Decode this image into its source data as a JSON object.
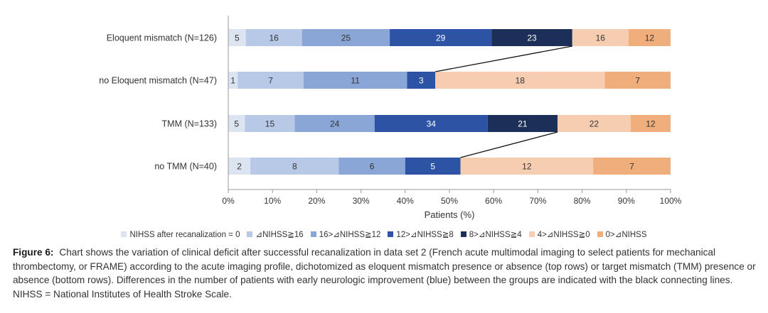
{
  "chart_data": {
    "type": "bar",
    "orientation": "horizontal",
    "stacking": "percent",
    "categories": [
      "Eloquent mismatch (N=126)",
      "no Eloquent mismatch (N=47)",
      "TMM (N=133)",
      "no TMM (N=40)"
    ],
    "totals": [
      126,
      47,
      133,
      40
    ],
    "series": [
      {
        "name": "NIHSS after recanalization = 0",
        "color": "#dde4f1",
        "values": [
          5,
          1,
          5,
          2
        ]
      },
      {
        "name": "⊿NIHSS≧16",
        "color": "#b8c9e8",
        "values": [
          16,
          7,
          15,
          8
        ]
      },
      {
        "name": "16>⊿NIHSS≧12",
        "color": "#8aa6d6",
        "values": [
          25,
          11,
          24,
          6
        ]
      },
      {
        "name": "12>⊿NIHSS≧8",
        "color": "#2c53a4",
        "values": [
          29,
          3,
          34,
          5
        ]
      },
      {
        "name": "8>⊿NIHSS≧4",
        "color": "#1c2f58",
        "values": [
          23,
          0,
          21,
          0
        ]
      },
      {
        "name": "4>⊿NIHSS≧0",
        "color": "#f6cdb1",
        "values": [
          16,
          18,
          22,
          12
        ]
      },
      {
        "name": "0>⊿NIHSS",
        "color": "#f0ae7d",
        "values": [
          12,
          7,
          12,
          7
        ]
      }
    ],
    "connectors": [
      [
        0,
        1
      ],
      [
        2,
        3
      ]
    ],
    "xlabel": "Patients (%)",
    "xticks": [
      "0%",
      "10%",
      "20%",
      "30%",
      "40%",
      "50%",
      "60%",
      "70%",
      "80%",
      "90%",
      "100%"
    ],
    "xlim": [
      0,
      100
    ],
    "grid": false,
    "legend_position": "bottom"
  },
  "caption": {
    "label": "Figure 6:",
    "text": "Chart shows the variation of clinical deficit after successful recanalization in data set 2 (French acute multimodal imaging to select patients for mechanical thrombectomy, or FRAME) according to the acute imaging profile, dichotomized as eloquent mismatch presence or absence (top rows) or target mismatch (TMM) presence or absence (bottom rows). Differences in the number of patients with early neurologic improvement (blue) between the groups are indicated with the black connecting lines. NIHSS = National Institutes of Health Stroke Scale."
  }
}
